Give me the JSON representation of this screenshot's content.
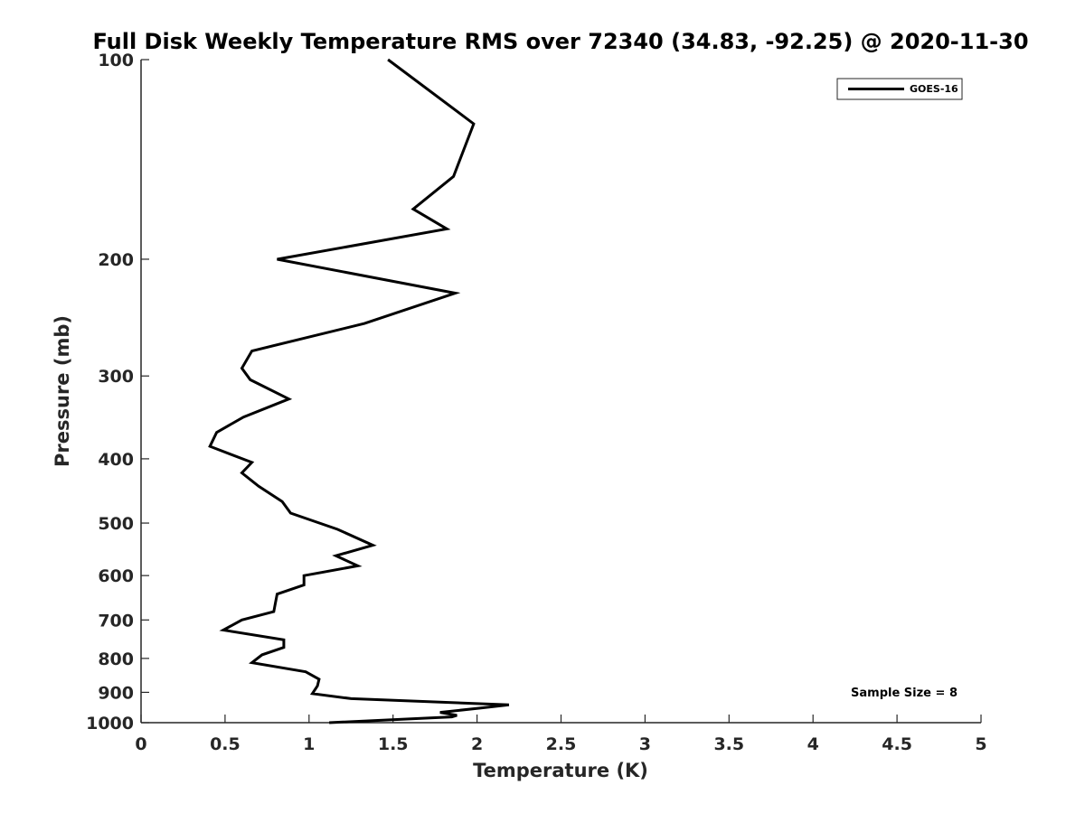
{
  "chart_data": {
    "type": "line",
    "title": "Full Disk Weekly Temperature RMS over 72340 (34.83, -92.25) @ 2020-11-30",
    "xlabel": "Temperature (K)",
    "ylabel": "Pressure (mb)",
    "xlim": [
      0,
      5
    ],
    "ylim": [
      100,
      1000
    ],
    "y_scale": "log",
    "y_reversed": true,
    "x_ticks": [
      "0",
      "0.5",
      "1",
      "1.5",
      "2",
      "2.5",
      "3",
      "3.5",
      "4",
      "4.5",
      "5"
    ],
    "y_ticks": [
      "100",
      "200",
      "300",
      "400",
      "500",
      "600",
      "700",
      "800",
      "900",
      "1000"
    ],
    "grid": false,
    "legend_position": "top-right",
    "annotation": "Sample Size = 8",
    "series": [
      {
        "name": "GOES-16",
        "color": "#000000",
        "points": [
          [
            1.47,
            100
          ],
          [
            1.98,
            125
          ],
          [
            1.86,
            150
          ],
          [
            1.62,
            168
          ],
          [
            1.82,
            180
          ],
          [
            0.81,
            200
          ],
          [
            1.87,
            225
          ],
          [
            1.33,
            250
          ],
          [
            0.66,
            275
          ],
          [
            0.6,
            292
          ],
          [
            0.65,
            304
          ],
          [
            0.88,
            325
          ],
          [
            0.61,
            346
          ],
          [
            0.45,
            365
          ],
          [
            0.41,
            383
          ],
          [
            0.66,
            405
          ],
          [
            0.6,
            420
          ],
          [
            0.7,
            440
          ],
          [
            0.84,
            464
          ],
          [
            0.89,
            483
          ],
          [
            1.17,
            511
          ],
          [
            1.38,
            540
          ],
          [
            1.16,
            560
          ],
          [
            1.29,
            580
          ],
          [
            0.97,
            600
          ],
          [
            0.97,
            620
          ],
          [
            0.81,
            640
          ],
          [
            0.8,
            660
          ],
          [
            0.79,
            680
          ],
          [
            0.6,
            700
          ],
          [
            0.49,
            725
          ],
          [
            0.85,
            750
          ],
          [
            0.85,
            770
          ],
          [
            0.72,
            790
          ],
          [
            0.66,
            812
          ],
          [
            0.98,
            838
          ],
          [
            1.06,
            860
          ],
          [
            1.05,
            880
          ],
          [
            1.02,
            904
          ],
          [
            1.25,
            920
          ],
          [
            2.19,
            940
          ],
          [
            2.03,
            950
          ],
          [
            1.78,
            965
          ],
          [
            1.88,
            975
          ],
          [
            1.85,
            980
          ],
          [
            1.12,
            1000
          ]
        ]
      }
    ]
  }
}
